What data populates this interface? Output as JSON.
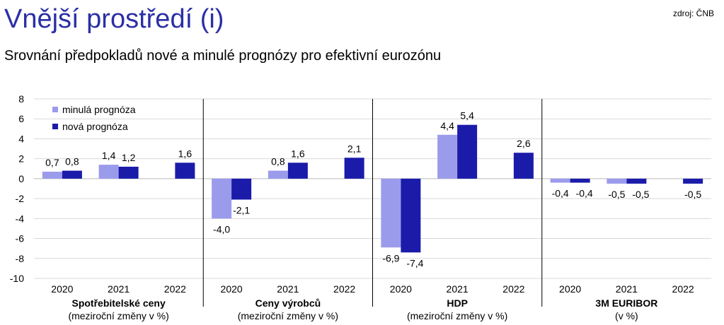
{
  "header": {
    "title": "Vnější prostředí (i)",
    "source": "zdroj: ČNB",
    "subtitle": "Srovnání předpokladů nové a minulé prognózy pro efektivní eurozónu"
  },
  "colors": {
    "series_prev": "#9b9bec",
    "series_new": "#1b1baa",
    "grid": "#d9d9d9",
    "divider": "#000000"
  },
  "chart_data": {
    "type": "bar",
    "ylim": [
      -10,
      8
    ],
    "yticks": [
      8,
      6,
      4,
      2,
      0,
      -2,
      -4,
      -6,
      -8,
      -10
    ],
    "ytick_labels": [
      "8",
      "6",
      "4",
      "2",
      "0",
      "-2",
      "-4",
      "-6",
      "-8",
      "-10"
    ],
    "grid": true,
    "legend_position": "top-left",
    "series": [
      {
        "name": "minulá prognóza",
        "color": "#9b9bec"
      },
      {
        "name": "nová prognóza",
        "color": "#1b1baa"
      }
    ],
    "groups": [
      {
        "name": "Spotřebitelské ceny",
        "unit": "(meziroční změny v %)",
        "years": [
          {
            "year": "2020",
            "prev": 0.7,
            "new": 0.8,
            "prev_label": "0,7",
            "new_label": "0,8"
          },
          {
            "year": "2021",
            "prev": 1.4,
            "new": 1.2,
            "prev_label": "1,4",
            "new_label": "1,2"
          },
          {
            "year": "2022",
            "prev": null,
            "new": 1.6,
            "prev_label": null,
            "new_label": "1,6"
          }
        ]
      },
      {
        "name": "Ceny výrobců",
        "unit": "(meziroční změny v %)",
        "years": [
          {
            "year": "2020",
            "prev": -4.0,
            "new": -2.1,
            "prev_label": "-4,0",
            "new_label": "-2,1"
          },
          {
            "year": "2021",
            "prev": 0.8,
            "new": 1.6,
            "prev_label": "0,8",
            "new_label": "1,6"
          },
          {
            "year": "2022",
            "prev": null,
            "new": 2.1,
            "prev_label": null,
            "new_label": "2,1"
          }
        ]
      },
      {
        "name": "HDP",
        "unit": "(meziroční změny v %)",
        "years": [
          {
            "year": "2020",
            "prev": -6.9,
            "new": -7.4,
            "prev_label": "-6,9",
            "new_label": "-7,4"
          },
          {
            "year": "2021",
            "prev": 4.4,
            "new": 5.4,
            "prev_label": "4,4",
            "new_label": "5,4"
          },
          {
            "year": "2022",
            "prev": null,
            "new": 2.6,
            "prev_label": null,
            "new_label": "2,6"
          }
        ]
      },
      {
        "name": "3M EURIBOR",
        "unit": "(v %)",
        "years": [
          {
            "year": "2020",
            "prev": -0.4,
            "new": -0.4,
            "prev_label": "-0,4",
            "new_label": "-0,4"
          },
          {
            "year": "2021",
            "prev": -0.5,
            "new": -0.5,
            "prev_label": "-0,5",
            "new_label": "-0,5"
          },
          {
            "year": "2022",
            "prev": null,
            "new": -0.5,
            "prev_label": null,
            "new_label": "-0,5"
          }
        ]
      }
    ]
  }
}
